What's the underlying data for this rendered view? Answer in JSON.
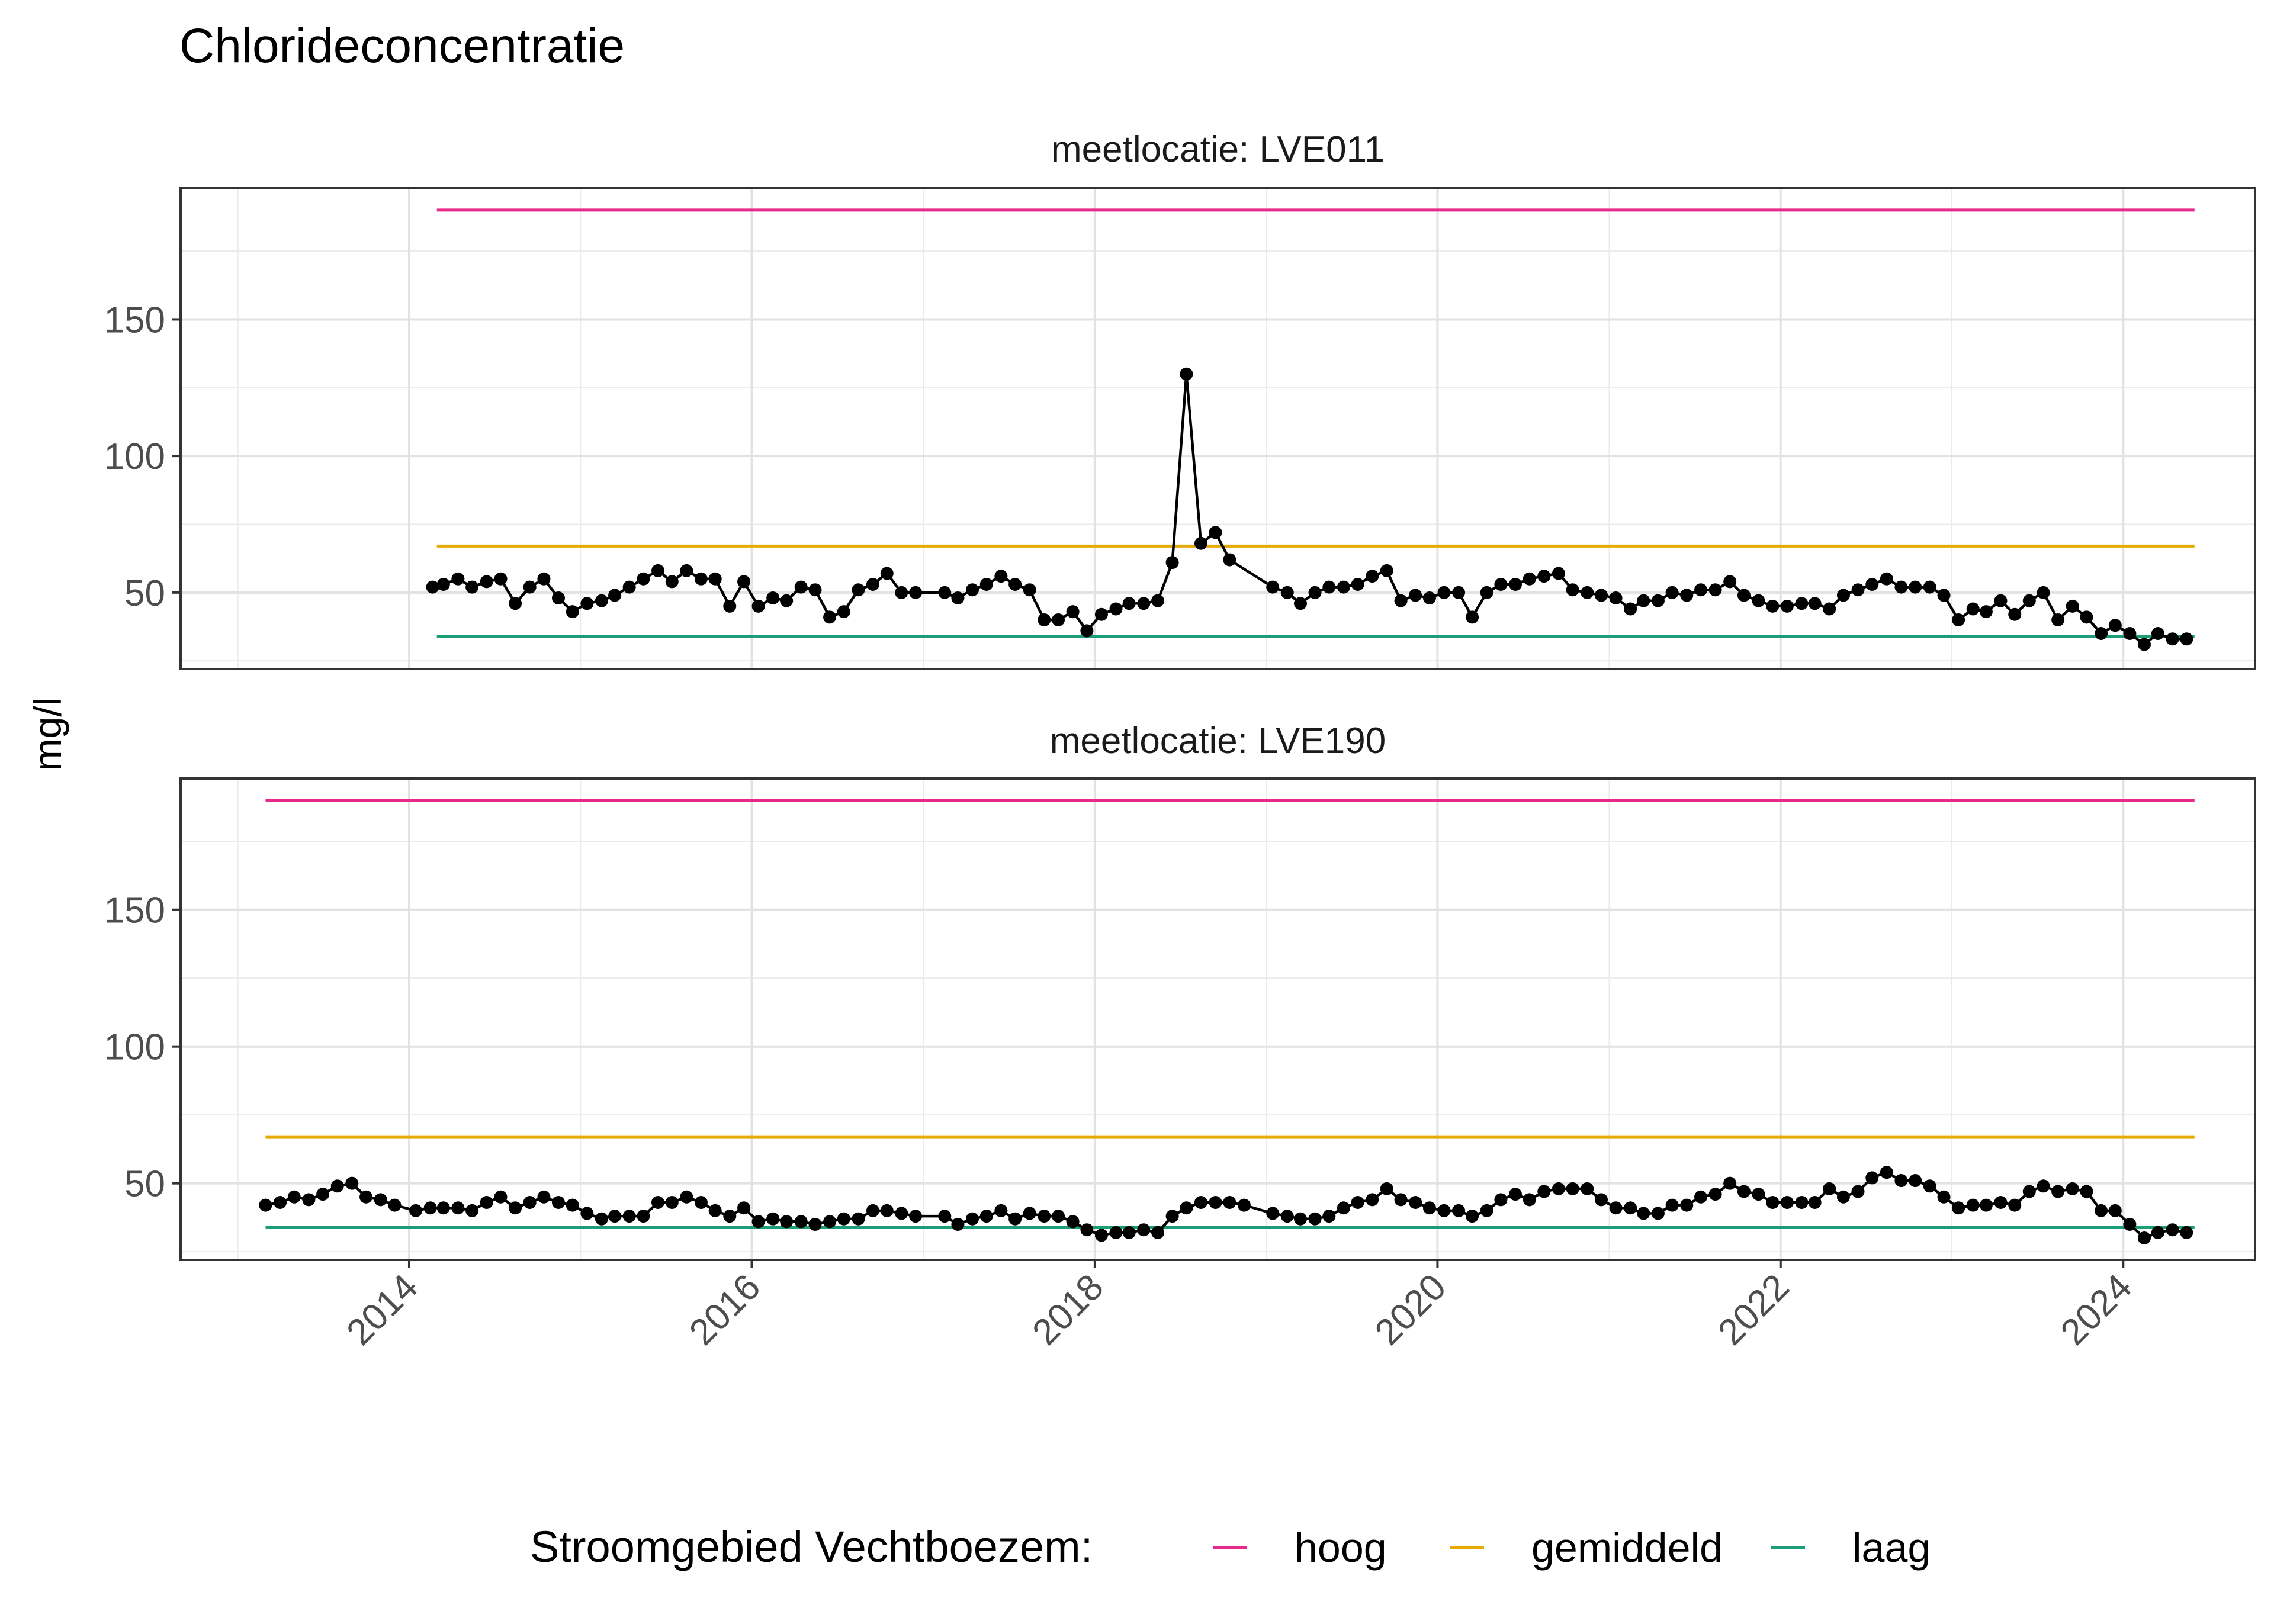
{
  "title": "Chlorideconcentratie",
  "ylabel": "mg/l",
  "legend": {
    "title": "Stroomgebied Vechtboezem:",
    "position": "bottom",
    "items": [
      {
        "label": "hoog",
        "color": "#E7298A"
      },
      {
        "label": "gemiddeld",
        "color": "#E6AB02"
      },
      {
        "label": "laag",
        "color": "#1B9E77"
      }
    ]
  },
  "chart_data": {
    "type": "line",
    "grid": true,
    "xlim": [
      "2012-09-01",
      "2024-10-08"
    ],
    "ylim": [
      22,
      198
    ],
    "x_ticks": [
      "2014",
      "2016",
      "2018",
      "2020",
      "2022",
      "2024"
    ],
    "y_ticks": [
      50,
      100,
      150
    ],
    "panels": [
      {
        "title": "meetlocatie: LVE011",
        "series_color": "#000000",
        "thresholds": [
          {
            "name": "hoog",
            "value": 190,
            "x": [
              "2014-03-01",
              "2024-06-01"
            ],
            "color": "#E7298A"
          },
          {
            "name": "gemiddeld",
            "value": 67,
            "x": [
              "2014-03-01",
              "2024-06-01"
            ],
            "color": "#E6AB02"
          },
          {
            "name": "laag",
            "value": 34,
            "x": [
              "2014-03-01",
              "2024-06-01"
            ],
            "color": "#1B9E77"
          }
        ],
        "points": [
          [
            "2014-02-20",
            52
          ],
          [
            "2014-03-15",
            53
          ],
          [
            "2014-04-15",
            55
          ],
          [
            "2014-05-15",
            52
          ],
          [
            "2014-06-15",
            54
          ],
          [
            "2014-07-15",
            55
          ],
          [
            "2014-08-15",
            46
          ],
          [
            "2014-09-15",
            52
          ],
          [
            "2014-10-15",
            55
          ],
          [
            "2014-11-15",
            48
          ],
          [
            "2014-12-15",
            43
          ],
          [
            "2015-01-15",
            46
          ],
          [
            "2015-02-15",
            47
          ],
          [
            "2015-03-15",
            49
          ],
          [
            "2015-04-15",
            52
          ],
          [
            "2015-05-15",
            55
          ],
          [
            "2015-06-15",
            58
          ],
          [
            "2015-07-15",
            54
          ],
          [
            "2015-08-15",
            58
          ],
          [
            "2015-09-15",
            55
          ],
          [
            "2015-10-15",
            55
          ],
          [
            "2015-11-15",
            45
          ],
          [
            "2015-12-15",
            54
          ],
          [
            "2016-01-15",
            45
          ],
          [
            "2016-02-15",
            48
          ],
          [
            "2016-03-15",
            47
          ],
          [
            "2016-04-15",
            52
          ],
          [
            "2016-05-15",
            51
          ],
          [
            "2016-06-15",
            41
          ],
          [
            "2016-07-15",
            43
          ],
          [
            "2016-08-15",
            51
          ],
          [
            "2016-09-15",
            53
          ],
          [
            "2016-10-15",
            57
          ],
          [
            "2016-11-15",
            50
          ],
          [
            "2016-12-15",
            50
          ],
          [
            "2017-02-15",
            50
          ],
          [
            "2017-03-15",
            48
          ],
          [
            "2017-04-15",
            51
          ],
          [
            "2017-05-15",
            53
          ],
          [
            "2017-06-15",
            56
          ],
          [
            "2017-07-15",
            53
          ],
          [
            "2017-08-15",
            51
          ],
          [
            "2017-09-15",
            40
          ],
          [
            "2017-10-15",
            40
          ],
          [
            "2017-11-15",
            43
          ],
          [
            "2017-12-15",
            36
          ],
          [
            "2018-01-15",
            42
          ],
          [
            "2018-02-15",
            44
          ],
          [
            "2018-03-15",
            46
          ],
          [
            "2018-04-15",
            46
          ],
          [
            "2018-05-15",
            47
          ],
          [
            "2018-06-15",
            61
          ],
          [
            "2018-07-15",
            130
          ],
          [
            "2018-08-15",
            68
          ],
          [
            "2018-09-15",
            72
          ],
          [
            "2018-10-15",
            62
          ],
          [
            "2019-01-15",
            52
          ],
          [
            "2019-02-15",
            50
          ],
          [
            "2019-03-15",
            46
          ],
          [
            "2019-04-15",
            50
          ],
          [
            "2019-05-15",
            52
          ],
          [
            "2019-06-15",
            52
          ],
          [
            "2019-07-15",
            53
          ],
          [
            "2019-08-15",
            56
          ],
          [
            "2019-09-15",
            58
          ],
          [
            "2019-10-15",
            47
          ],
          [
            "2019-11-15",
            49
          ],
          [
            "2019-12-15",
            48
          ],
          [
            "2020-01-15",
            50
          ],
          [
            "2020-02-15",
            50
          ],
          [
            "2020-03-15",
            41
          ],
          [
            "2020-04-15",
            50
          ],
          [
            "2020-05-15",
            53
          ],
          [
            "2020-06-15",
            53
          ],
          [
            "2020-07-15",
            55
          ],
          [
            "2020-08-15",
            56
          ],
          [
            "2020-09-15",
            57
          ],
          [
            "2020-10-15",
            51
          ],
          [
            "2020-11-15",
            50
          ],
          [
            "2020-12-15",
            49
          ],
          [
            "2021-01-15",
            48
          ],
          [
            "2021-02-15",
            44
          ],
          [
            "2021-03-15",
            47
          ],
          [
            "2021-04-15",
            47
          ],
          [
            "2021-05-15",
            50
          ],
          [
            "2021-06-15",
            49
          ],
          [
            "2021-07-15",
            51
          ],
          [
            "2021-08-15",
            51
          ],
          [
            "2021-09-15",
            54
          ],
          [
            "2021-10-15",
            49
          ],
          [
            "2021-11-15",
            47
          ],
          [
            "2021-12-15",
            45
          ],
          [
            "2022-01-15",
            45
          ],
          [
            "2022-02-15",
            46
          ],
          [
            "2022-03-15",
            46
          ],
          [
            "2022-04-15",
            44
          ],
          [
            "2022-05-15",
            49
          ],
          [
            "2022-06-15",
            51
          ],
          [
            "2022-07-15",
            53
          ],
          [
            "2022-08-15",
            55
          ],
          [
            "2022-09-15",
            52
          ],
          [
            "2022-10-15",
            52
          ],
          [
            "2022-11-15",
            52
          ],
          [
            "2022-12-15",
            49
          ],
          [
            "2023-01-15",
            40
          ],
          [
            "2023-02-15",
            44
          ],
          [
            "2023-03-15",
            43
          ],
          [
            "2023-04-15",
            47
          ],
          [
            "2023-05-15",
            42
          ],
          [
            "2023-06-15",
            47
          ],
          [
            "2023-07-15",
            50
          ],
          [
            "2023-08-15",
            40
          ],
          [
            "2023-09-15",
            45
          ],
          [
            "2023-10-15",
            41
          ],
          [
            "2023-11-15",
            35
          ],
          [
            "2023-12-15",
            38
          ],
          [
            "2024-01-15",
            35
          ],
          [
            "2024-02-15",
            31
          ],
          [
            "2024-03-15",
            35
          ],
          [
            "2024-04-15",
            33
          ],
          [
            "2024-05-15",
            33
          ]
        ]
      },
      {
        "title": "meetlocatie: LVE190",
        "series_color": "#000000",
        "thresholds": [
          {
            "name": "hoog",
            "value": 190,
            "x": [
              "2013-03-01",
              "2024-06-01"
            ],
            "color": "#E7298A"
          },
          {
            "name": "gemiddeld",
            "value": 67,
            "x": [
              "2013-03-01",
              "2024-06-01"
            ],
            "color": "#E6AB02"
          },
          {
            "name": "laag",
            "value": 34,
            "x": [
              "2013-03-01",
              "2024-06-01"
            ],
            "color": "#1B9E77"
          }
        ],
        "points": [
          [
            "2013-03-01",
            42
          ],
          [
            "2013-04-01",
            43
          ],
          [
            "2013-05-01",
            45
          ],
          [
            "2013-06-01",
            44
          ],
          [
            "2013-07-01",
            46
          ],
          [
            "2013-08-01",
            49
          ],
          [
            "2013-09-01",
            50
          ],
          [
            "2013-10-01",
            45
          ],
          [
            "2013-11-01",
            44
          ],
          [
            "2013-12-01",
            42
          ],
          [
            "2014-01-15",
            40
          ],
          [
            "2014-02-15",
            41
          ],
          [
            "2014-03-15",
            41
          ],
          [
            "2014-04-15",
            41
          ],
          [
            "2014-05-15",
            40
          ],
          [
            "2014-06-15",
            43
          ],
          [
            "2014-07-15",
            45
          ],
          [
            "2014-08-15",
            41
          ],
          [
            "2014-09-15",
            43
          ],
          [
            "2014-10-15",
            45
          ],
          [
            "2014-11-15",
            43
          ],
          [
            "2014-12-15",
            42
          ],
          [
            "2015-01-15",
            39
          ],
          [
            "2015-02-15",
            37
          ],
          [
            "2015-03-15",
            38
          ],
          [
            "2015-04-15",
            38
          ],
          [
            "2015-05-15",
            38
          ],
          [
            "2015-06-15",
            43
          ],
          [
            "2015-07-15",
            43
          ],
          [
            "2015-08-15",
            45
          ],
          [
            "2015-09-15",
            43
          ],
          [
            "2015-10-15",
            40
          ],
          [
            "2015-11-15",
            38
          ],
          [
            "2015-12-15",
            41
          ],
          [
            "2016-01-15",
            36
          ],
          [
            "2016-02-15",
            37
          ],
          [
            "2016-03-15",
            36
          ],
          [
            "2016-04-15",
            36
          ],
          [
            "2016-05-15",
            35
          ],
          [
            "2016-06-15",
            36
          ],
          [
            "2016-07-15",
            37
          ],
          [
            "2016-08-15",
            37
          ],
          [
            "2016-09-15",
            40
          ],
          [
            "2016-10-15",
            40
          ],
          [
            "2016-11-15",
            39
          ],
          [
            "2016-12-15",
            38
          ],
          [
            "2017-02-15",
            38
          ],
          [
            "2017-03-15",
            35
          ],
          [
            "2017-04-15",
            37
          ],
          [
            "2017-05-15",
            38
          ],
          [
            "2017-06-15",
            40
          ],
          [
            "2017-07-15",
            37
          ],
          [
            "2017-08-15",
            39
          ],
          [
            "2017-09-15",
            38
          ],
          [
            "2017-10-15",
            38
          ],
          [
            "2017-11-15",
            36
          ],
          [
            "2017-12-15",
            33
          ],
          [
            "2018-01-15",
            31
          ],
          [
            "2018-02-15",
            32
          ],
          [
            "2018-03-15",
            32
          ],
          [
            "2018-04-15",
            33
          ],
          [
            "2018-05-15",
            32
          ],
          [
            "2018-06-15",
            38
          ],
          [
            "2018-07-15",
            41
          ],
          [
            "2018-08-15",
            43
          ],
          [
            "2018-09-15",
            43
          ],
          [
            "2018-10-15",
            43
          ],
          [
            "2018-11-15",
            42
          ],
          [
            "2019-01-15",
            39
          ],
          [
            "2019-02-15",
            38
          ],
          [
            "2019-03-15",
            37
          ],
          [
            "2019-04-15",
            37
          ],
          [
            "2019-05-15",
            38
          ],
          [
            "2019-06-15",
            41
          ],
          [
            "2019-07-15",
            43
          ],
          [
            "2019-08-15",
            44
          ],
          [
            "2019-09-15",
            48
          ],
          [
            "2019-10-15",
            44
          ],
          [
            "2019-11-15",
            43
          ],
          [
            "2019-12-15",
            41
          ],
          [
            "2020-01-15",
            40
          ],
          [
            "2020-02-15",
            40
          ],
          [
            "2020-03-15",
            38
          ],
          [
            "2020-04-15",
            40
          ],
          [
            "2020-05-15",
            44
          ],
          [
            "2020-06-15",
            46
          ],
          [
            "2020-07-15",
            44
          ],
          [
            "2020-08-15",
            47
          ],
          [
            "2020-09-15",
            48
          ],
          [
            "2020-10-15",
            48
          ],
          [
            "2020-11-15",
            48
          ],
          [
            "2020-12-15",
            44
          ],
          [
            "2021-01-15",
            41
          ],
          [
            "2021-02-15",
            41
          ],
          [
            "2021-03-15",
            39
          ],
          [
            "2021-04-15",
            39
          ],
          [
            "2021-05-15",
            42
          ],
          [
            "2021-06-15",
            42
          ],
          [
            "2021-07-15",
            45
          ],
          [
            "2021-08-15",
            46
          ],
          [
            "2021-09-15",
            50
          ],
          [
            "2021-10-15",
            47
          ],
          [
            "2021-11-15",
            46
          ],
          [
            "2021-12-15",
            43
          ],
          [
            "2022-01-15",
            43
          ],
          [
            "2022-02-15",
            43
          ],
          [
            "2022-03-15",
            43
          ],
          [
            "2022-04-15",
            48
          ],
          [
            "2022-05-15",
            45
          ],
          [
            "2022-06-15",
            47
          ],
          [
            "2022-07-15",
            52
          ],
          [
            "2022-08-15",
            54
          ],
          [
            "2022-09-15",
            51
          ],
          [
            "2022-10-15",
            51
          ],
          [
            "2022-11-15",
            49
          ],
          [
            "2022-12-15",
            45
          ],
          [
            "2023-01-15",
            41
          ],
          [
            "2023-02-15",
            42
          ],
          [
            "2023-03-15",
            42
          ],
          [
            "2023-04-15",
            43
          ],
          [
            "2023-05-15",
            42
          ],
          [
            "2023-06-15",
            47
          ],
          [
            "2023-07-15",
            49
          ],
          [
            "2023-08-15",
            47
          ],
          [
            "2023-09-15",
            48
          ],
          [
            "2023-10-15",
            47
          ],
          [
            "2023-11-15",
            40
          ],
          [
            "2023-12-15",
            40
          ],
          [
            "2024-01-15",
            35
          ],
          [
            "2024-02-15",
            30
          ],
          [
            "2024-03-15",
            32
          ],
          [
            "2024-04-15",
            33
          ],
          [
            "2024-05-15",
            32
          ]
        ]
      }
    ]
  }
}
